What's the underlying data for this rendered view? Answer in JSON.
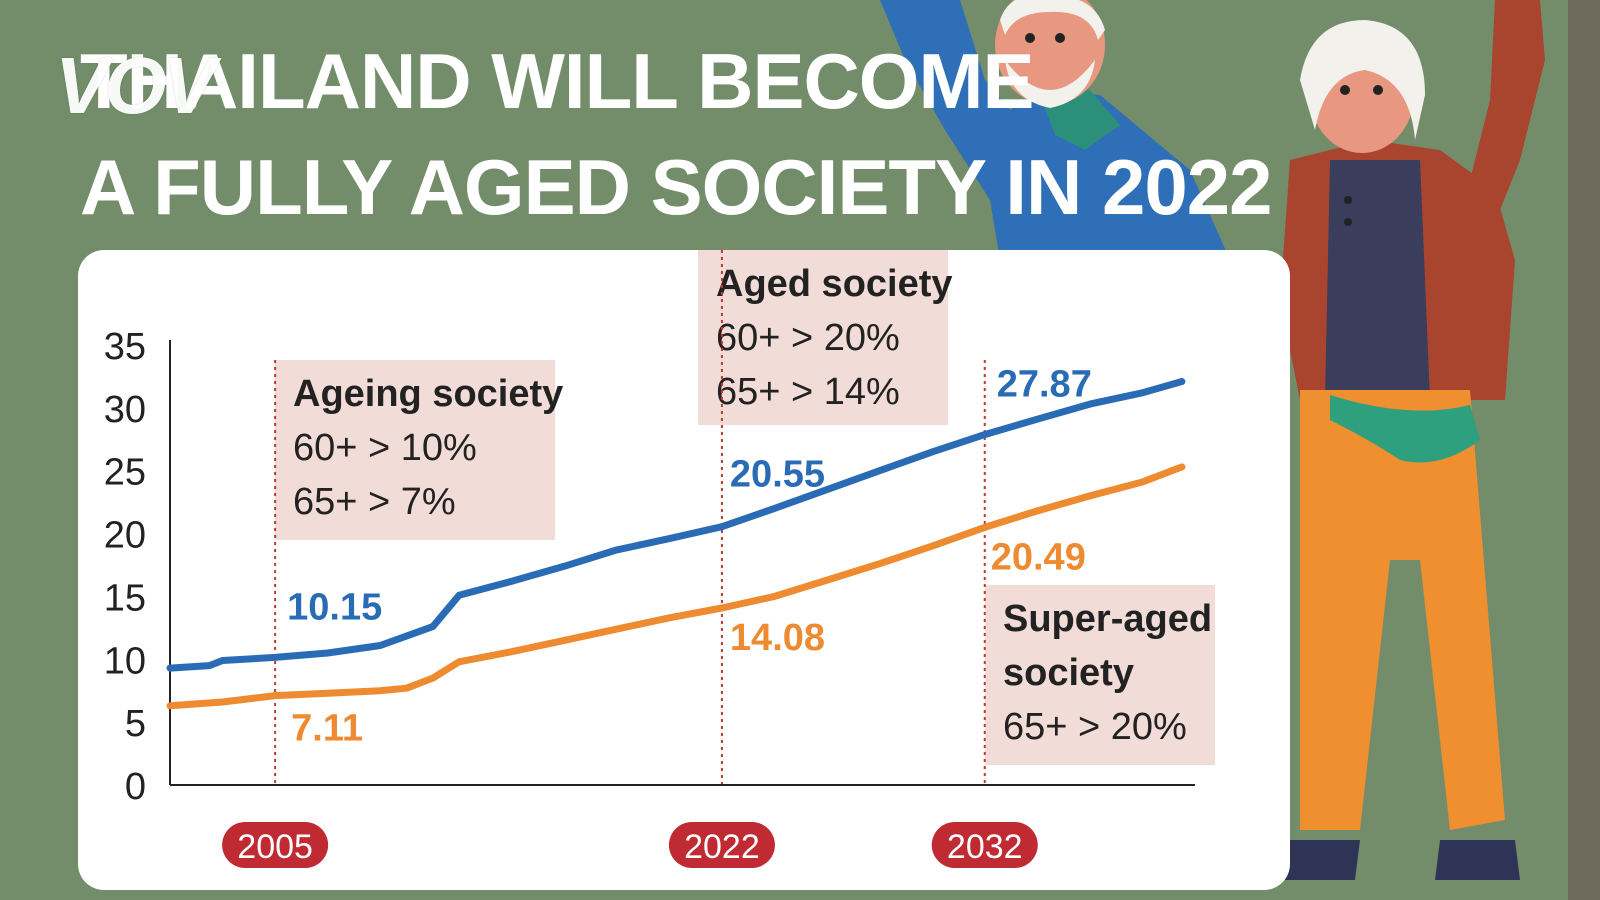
{
  "header": {
    "logo_text": "VOV",
    "title_line1": "THAILAND WILL BECOME",
    "title_line2": "A FULLY AGED SOCIETY IN 2022"
  },
  "colors": {
    "background": "#738d6a",
    "series_60": "#2a6bb5",
    "series_65": "#ee8a2f",
    "annotation_box": "#f2dcd8",
    "marker_line": "#c0392b",
    "year_badge": "#c02a32"
  },
  "chart_data": {
    "type": "line",
    "title": "THAILAND WILL BECOME A FULLY AGED SOCIETY IN 2022",
    "xlabel": "",
    "ylabel": "",
    "ylim": [
      0,
      35
    ],
    "y_ticks": [
      0,
      5,
      10,
      15,
      20,
      25,
      30,
      35
    ],
    "xlim": [
      2001,
      2040
    ],
    "grid": false,
    "legend": "none",
    "series": [
      {
        "x": [
          2001,
          2002.5,
          2003,
          2005,
          2007,
          2009,
          2011,
          2012,
          2014,
          2016,
          2018,
          2020,
          2022,
          2024,
          2026,
          2028,
          2030,
          2032,
          2034,
          2036,
          2038,
          2039.5
        ],
        "values": [
          9.3,
          9.5,
          9.9,
          10.15,
          10.5,
          11.1,
          12.6,
          15.1,
          16.2,
          17.4,
          18.7,
          19.6,
          20.55,
          22.0,
          23.5,
          25.0,
          26.5,
          27.87,
          29.1,
          30.3,
          31.2,
          32.1
        ]
      },
      {
        "x": [
          2001,
          2003,
          2005,
          2007,
          2009,
          2010,
          2011,
          2012,
          2014,
          2016,
          2018,
          2020,
          2022,
          2024,
          2026,
          2028,
          2030,
          2032,
          2034,
          2036,
          2038,
          2039.5
        ],
        "values": [
          6.3,
          6.6,
          7.11,
          7.3,
          7.5,
          7.7,
          8.5,
          9.8,
          10.6,
          11.5,
          12.4,
          13.3,
          14.08,
          15.0,
          16.3,
          17.6,
          19.0,
          20.49,
          21.8,
          23.0,
          24.1,
          25.3
        ]
      }
    ],
    "point_labels": [
      {
        "series": 0,
        "x": 2005,
        "text": "10.15"
      },
      {
        "series": 0,
        "x": 2022,
        "text": "20.55"
      },
      {
        "series": 0,
        "x": 2032,
        "text": "27.87"
      },
      {
        "series": 1,
        "x": 2005,
        "text": "7.11"
      },
      {
        "series": 1,
        "x": 2022,
        "text": "14.08"
      },
      {
        "series": 1,
        "x": 2032,
        "text": "20.49"
      }
    ],
    "milestones": [
      {
        "year": 2005,
        "label": "2005",
        "box_title": "Ageing society",
        "box_lines": [
          "60+ > 10%",
          "65+ > 7%"
        ]
      },
      {
        "year": 2022,
        "label": "2022",
        "box_title": "Aged society",
        "box_lines": [
          "60+ > 20%",
          "65+ > 14%"
        ]
      },
      {
        "year": 2032,
        "label": "2032",
        "box_title": "Super-aged",
        "box_lines": [
          "society",
          "65+  > 20%"
        ]
      }
    ]
  }
}
